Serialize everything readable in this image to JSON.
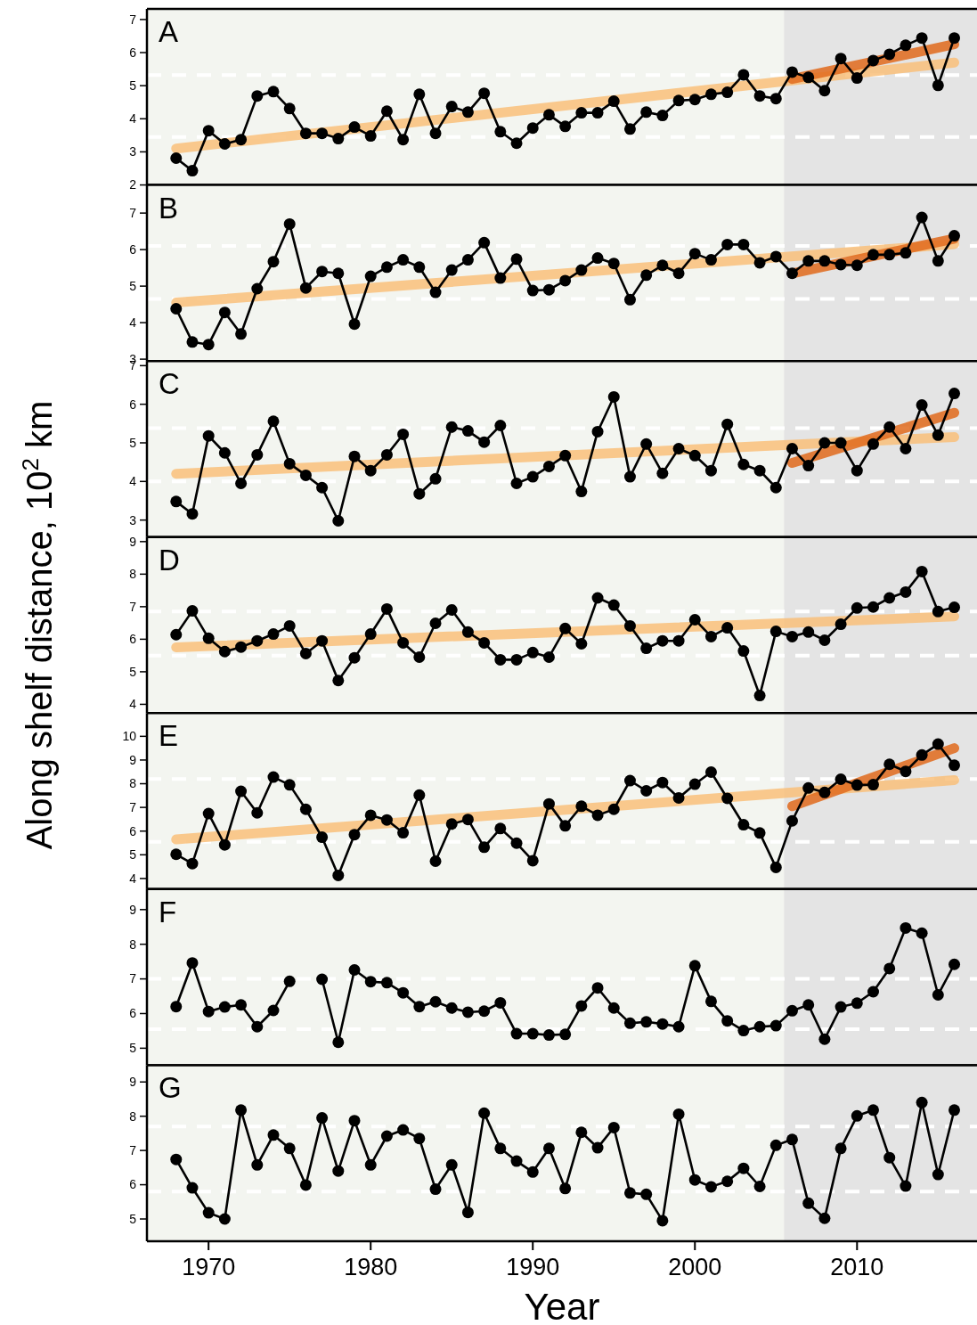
{
  "chart_data": [
    {
      "type": "line",
      "title": "A",
      "tick_labels": "y",
      "xlim": [
        1966.2,
        2017.4
      ],
      "xticks": [
        1970,
        1980,
        1990,
        2000,
        2010
      ],
      "ylim": [
        2,
        7.32
      ],
      "yticks": [
        2,
        3,
        4,
        5,
        6,
        7
      ],
      "x": [
        1968,
        1969,
        1970,
        1971,
        1972,
        1973,
        1974,
        1975,
        1976,
        1977,
        1978,
        1979,
        1980,
        1981,
        1982,
        1983,
        1984,
        1985,
        1986,
        1987,
        1988,
        1989,
        1990,
        1991,
        1992,
        1993,
        1994,
        1995,
        1996,
        1997,
        1998,
        1999,
        2000,
        2001,
        2002,
        2003,
        2004,
        2005,
        2006,
        2007,
        2008,
        2009,
        2010,
        2011,
        2012,
        2013,
        2014,
        2015,
        2016
      ],
      "bands": [
        {
          "axis": "x",
          "from": 2005.5,
          "to": 2017.4,
          "color": "#e4e4e4"
        }
      ],
      "ref_lines": [
        {
          "axis": "y",
          "value": 3.45,
          "color": "#ffffff",
          "line_style": "dashed"
        },
        {
          "axis": "y",
          "value": 5.32,
          "color": "#ffffff",
          "line_style": "dashed"
        }
      ],
      "series": [
        {
          "type": "line",
          "color": "#000000",
          "marker": "circle",
          "values": [
            2.81,
            2.43,
            3.64,
            3.24,
            3.37,
            4.69,
            4.82,
            4.31,
            3.56,
            3.56,
            3.4,
            3.75,
            3.48,
            4.23,
            3.37,
            4.74,
            3.56,
            4.37,
            4.2,
            4.77,
            3.61,
            3.26,
            3.72,
            4.12,
            3.77,
            4.18,
            4.18,
            4.53,
            3.69,
            4.2,
            4.1,
            4.55,
            4.58,
            4.74,
            4.8,
            5.33,
            4.69,
            4.61,
            5.41,
            5.25,
            4.85,
            5.82,
            5.23,
            5.76,
            5.95,
            6.22,
            6.44,
            5.01,
            6.44
          ]
        },
        {
          "type": "line",
          "color": "#f9c07a",
          "marker": "none",
          "x": [
            1968,
            2016
          ],
          "values": [
            3.1,
            5.7
          ]
        },
        {
          "type": "line",
          "color": "#e06a1c",
          "marker": "none",
          "x": [
            2006,
            2016
          ],
          "values": [
            5.2,
            6.25
          ]
        }
      ]
    },
    {
      "type": "line",
      "title": "B",
      "tick_labels": "y",
      "xlim": [
        1966.2,
        2017.4
      ],
      "xticks": [
        1970,
        1980,
        1990,
        2000,
        2010
      ],
      "ylim": [
        2.95,
        7.77
      ],
      "yticks": [
        3,
        4,
        5,
        6,
        7
      ],
      "x": [
        1968,
        1969,
        1970,
        1971,
        1972,
        1973,
        1974,
        1975,
        1976,
        1977,
        1978,
        1979,
        1980,
        1981,
        1982,
        1983,
        1984,
        1985,
        1986,
        1987,
        1988,
        1989,
        1990,
        1991,
        1992,
        1993,
        1994,
        1995,
        1996,
        1997,
        1998,
        1999,
        2000,
        2001,
        2002,
        2003,
        2004,
        2005,
        2006,
        2007,
        2008,
        2009,
        2010,
        2011,
        2012,
        2013,
        2014,
        2015,
        2016
      ],
      "bands": [
        {
          "axis": "x",
          "from": 2005.5,
          "to": 2017.4,
          "color": "#e4e4e4"
        }
      ],
      "ref_lines": [
        {
          "axis": "y",
          "value": 4.65,
          "color": "#ffffff",
          "line_style": "dashed"
        },
        {
          "axis": "y",
          "value": 6.1,
          "color": "#ffffff",
          "line_style": "dashed"
        }
      ],
      "series": [
        {
          "type": "line",
          "color": "#000000",
          "marker": "circle",
          "values": [
            4.38,
            3.47,
            3.4,
            4.28,
            3.69,
            4.93,
            5.67,
            6.7,
            4.95,
            5.4,
            5.35,
            3.96,
            5.27,
            5.52,
            5.72,
            5.52,
            4.83,
            5.44,
            5.72,
            6.19,
            5.22,
            5.74,
            4.88,
            4.9,
            5.15,
            5.44,
            5.77,
            5.62,
            4.63,
            5.3,
            5.57,
            5.35,
            5.89,
            5.72,
            6.14,
            6.14,
            5.64,
            5.81,
            5.35,
            5.69,
            5.69,
            5.59,
            5.57,
            5.86,
            5.86,
            5.91,
            6.88,
            5.69,
            6.38
          ]
        },
        {
          "type": "line",
          "color": "#f9c07a",
          "marker": "none",
          "x": [
            1968,
            2016
          ],
          "values": [
            4.55,
            6.15
          ]
        },
        {
          "type": "line",
          "color": "#e06a1c",
          "marker": "none",
          "x": [
            2006,
            2016
          ],
          "values": [
            5.35,
            6.3
          ]
        }
      ]
    },
    {
      "type": "line",
      "title": "C",
      "tick_labels": "y",
      "xlim": [
        1966.2,
        2017.4
      ],
      "xticks": [
        1970,
        1980,
        1990,
        2000,
        2010
      ],
      "ylim": [
        2.56,
        7.12
      ],
      "yticks": [
        3,
        4,
        5,
        6,
        7
      ],
      "x": [
        1968,
        1969,
        1970,
        1971,
        1972,
        1973,
        1974,
        1975,
        1976,
        1977,
        1978,
        1979,
        1980,
        1981,
        1982,
        1983,
        1984,
        1985,
        1986,
        1987,
        1988,
        1989,
        1990,
        1991,
        1992,
        1993,
        1994,
        1995,
        1996,
        1997,
        1998,
        1999,
        2000,
        2001,
        2002,
        2003,
        2004,
        2005,
        2006,
        2007,
        2008,
        2009,
        2010,
        2011,
        2012,
        2013,
        2014,
        2015,
        2016
      ],
      "bands": [
        {
          "axis": "x",
          "from": 2005.5,
          "to": 2017.4,
          "color": "#e4e4e4"
        }
      ],
      "ref_lines": [
        {
          "axis": "y",
          "value": 4.0,
          "color": "#ffffff",
          "line_style": "dashed"
        },
        {
          "axis": "y",
          "value": 5.38,
          "color": "#ffffff",
          "line_style": "dashed"
        }
      ],
      "series": [
        {
          "type": "line",
          "color": "#000000",
          "marker": "circle",
          "values": [
            3.48,
            3.16,
            5.18,
            4.74,
            3.95,
            4.69,
            5.56,
            4.46,
            4.16,
            3.84,
            2.98,
            4.65,
            4.28,
            4.69,
            5.22,
            3.68,
            4.07,
            5.41,
            5.31,
            5.02,
            5.45,
            3.95,
            4.12,
            4.39,
            4.67,
            3.74,
            5.29,
            6.19,
            4.12,
            4.97,
            4.21,
            4.85,
            4.67,
            4.28,
            5.48,
            4.44,
            4.28,
            3.84,
            4.85,
            4.41,
            5.0,
            5.0,
            4.28,
            4.97,
            5.41,
            4.85,
            5.98,
            5.2,
            6.28
          ]
        },
        {
          "type": "line",
          "color": "#f9c07a",
          "marker": "none",
          "x": [
            1968,
            2016
          ],
          "values": [
            4.2,
            5.15
          ]
        },
        {
          "type": "line",
          "color": "#e06a1c",
          "marker": "none",
          "x": [
            2006,
            2016
          ],
          "values": [
            4.48,
            5.78
          ]
        }
      ]
    },
    {
      "type": "line",
      "title": "D",
      "ylabel": "Along shelf distance, 10$^{2}$ km",
      "tick_labels": "y",
      "xlim": [
        1966.2,
        2017.4
      ],
      "xticks": [
        1970,
        1980,
        1990,
        2000,
        2010
      ],
      "ylim": [
        3.73,
        9.14
      ],
      "yticks": [
        4,
        5,
        6,
        7,
        8,
        9
      ],
      "x": [
        1968,
        1969,
        1970,
        1971,
        1972,
        1973,
        1974,
        1975,
        1976,
        1977,
        1978,
        1979,
        1980,
        1981,
        1982,
        1983,
        1984,
        1985,
        1986,
        1987,
        1988,
        1989,
        1990,
        1991,
        1992,
        1993,
        1994,
        1995,
        1996,
        1997,
        1998,
        1999,
        2000,
        2001,
        2002,
        2003,
        2004,
        2005,
        2006,
        2007,
        2008,
        2009,
        2010,
        2011,
        2012,
        2013,
        2014,
        2015,
        2016
      ],
      "bands": [
        {
          "axis": "x",
          "from": 2005.5,
          "to": 2017.4,
          "color": "#e4e4e4"
        }
      ],
      "ref_lines": [
        {
          "axis": "y",
          "value": 5.5,
          "color": "#ffffff",
          "line_style": "dashed"
        },
        {
          "axis": "y",
          "value": 6.85,
          "color": "#ffffff",
          "line_style": "dashed"
        }
      ],
      "series": [
        {
          "type": "line",
          "color": "#000000",
          "marker": "circle",
          "values": [
            6.14,
            6.87,
            6.03,
            5.62,
            5.76,
            5.95,
            6.16,
            6.41,
            5.56,
            5.95,
            4.73,
            5.43,
            6.16,
            6.93,
            5.89,
            5.45,
            6.49,
            6.9,
            6.22,
            5.89,
            5.37,
            5.37,
            5.59,
            5.45,
            6.33,
            5.86,
            7.27,
            7.05,
            6.41,
            5.72,
            5.95,
            5.95,
            6.6,
            6.08,
            6.35,
            5.64,
            4.27,
            6.24,
            6.08,
            6.22,
            5.97,
            6.46,
            6.96,
            6.99,
            7.27,
            7.45,
            8.08,
            6.85,
            6.98
          ]
        },
        {
          "type": "line",
          "color": "#f9c07a",
          "marker": "none",
          "x": [
            1968,
            2016
          ],
          "values": [
            5.75,
            6.7
          ]
        }
      ]
    },
    {
      "type": "line",
      "title": "E",
      "tick_labels": "y",
      "xlim": [
        1966.2,
        2017.4
      ],
      "xticks": [
        1970,
        1980,
        1990,
        2000,
        2010
      ],
      "ylim": [
        3.55,
        10.98
      ],
      "yticks": [
        4,
        5,
        6,
        7,
        8,
        9,
        10
      ],
      "x": [
        1968,
        1969,
        1970,
        1971,
        1972,
        1973,
        1974,
        1975,
        1976,
        1977,
        1978,
        1979,
        1980,
        1981,
        1982,
        1983,
        1984,
        1985,
        1986,
        1987,
        1988,
        1989,
        1990,
        1991,
        1992,
        1993,
        1994,
        1995,
        1996,
        1997,
        1998,
        1999,
        2000,
        2001,
        2002,
        2003,
        2004,
        2005,
        2006,
        2007,
        2008,
        2009,
        2010,
        2011,
        2012,
        2013,
        2014,
        2015,
        2016
      ],
      "bands": [
        {
          "axis": "x",
          "from": 2005.5,
          "to": 2017.4,
          "color": "#e4e4e4"
        }
      ],
      "ref_lines": [
        {
          "axis": "y",
          "value": 5.55,
          "color": "#ffffff",
          "line_style": "dashed"
        },
        {
          "axis": "y",
          "value": 8.2,
          "color": "#ffffff",
          "line_style": "dashed"
        }
      ],
      "series": [
        {
          "type": "line",
          "color": "#000000",
          "marker": "circle",
          "values": [
            5.02,
            4.63,
            6.74,
            5.42,
            7.68,
            6.77,
            8.28,
            7.95,
            6.92,
            5.74,
            4.13,
            5.85,
            6.67,
            6.47,
            5.93,
            7.52,
            4.73,
            6.3,
            6.49,
            5.32,
            6.11,
            5.49,
            4.75,
            7.15,
            6.22,
            7.05,
            6.67,
            6.92,
            8.13,
            7.7,
            8.05,
            7.4,
            7.98,
            8.49,
            7.38,
            6.27,
            5.92,
            4.47,
            6.43,
            7.82,
            7.63,
            8.19,
            7.94,
            7.96,
            8.82,
            8.52,
            9.21,
            9.67,
            8.78
          ]
        },
        {
          "type": "line",
          "color": "#f9c07a",
          "marker": "none",
          "x": [
            1968,
            2016
          ],
          "values": [
            5.65,
            8.15
          ]
        },
        {
          "type": "line",
          "color": "#e06a1c",
          "marker": "none",
          "x": [
            2006,
            2016
          ],
          "values": [
            7.05,
            9.5
          ]
        }
      ]
    },
    {
      "type": "line",
      "title": "F",
      "tick_labels": "y",
      "xlim": [
        1966.2,
        2017.4
      ],
      "xticks": [
        1970,
        1980,
        1990,
        2000,
        2010
      ],
      "ylim": [
        4.51,
        9.59
      ],
      "yticks": [
        5,
        6,
        7,
        8,
        9
      ],
      "x": [
        1968,
        1969,
        1970,
        1971,
        1972,
        1973,
        1974,
        1975,
        1976,
        1977,
        1978,
        1979,
        1980,
        1981,
        1982,
        1983,
        1984,
        1985,
        1986,
        1987,
        1988,
        1989,
        1990,
        1991,
        1992,
        1993,
        1994,
        1995,
        1996,
        1997,
        1998,
        1999,
        2000,
        2001,
        2002,
        2003,
        2004,
        2005,
        2006,
        2007,
        2008,
        2009,
        2010,
        2011,
        2012,
        2013,
        2014,
        2015,
        2016
      ],
      "bands": [
        {
          "axis": "x",
          "from": 2005.5,
          "to": 2017.4,
          "color": "#e4e4e4"
        }
      ],
      "ref_lines": [
        {
          "axis": "y",
          "value": 5.55,
          "color": "#ffffff",
          "line_style": "dashed"
        },
        {
          "axis": "y",
          "value": 7.0,
          "color": "#ffffff",
          "line_style": "dashed"
        }
      ],
      "series": [
        {
          "type": "line",
          "color": "#000000",
          "marker": "circle",
          "values": [
            6.2,
            7.46,
            6.06,
            6.19,
            6.25,
            5.62,
            6.09,
            6.93,
            null,
            6.99,
            5.17,
            7.26,
            6.92,
            6.89,
            6.6,
            6.2,
            6.34,
            6.16,
            6.04,
            6.07,
            6.31,
            5.42,
            5.42,
            5.38,
            5.4,
            6.22,
            6.74,
            6.16,
            5.72,
            5.76,
            5.7,
            5.62,
            7.38,
            6.35,
            5.79,
            5.51,
            5.62,
            5.65,
            6.08,
            6.25,
            5.26,
            6.19,
            6.3,
            6.63,
            7.3,
            8.47,
            8.32,
            6.54,
            7.42
          ]
        }
      ]
    },
    {
      "type": "line",
      "title": "G",
      "xlabel": "Year",
      "xlim": [
        1966.2,
        2017.4
      ],
      "xticks": [
        1970,
        1980,
        1990,
        2000,
        2010
      ],
      "ylim": [
        4.35,
        9.49
      ],
      "yticks": [
        5,
        6,
        7,
        8,
        9
      ],
      "x": [
        1968,
        1969,
        1970,
        1971,
        1972,
        1973,
        1974,
        1975,
        1976,
        1977,
        1978,
        1979,
        1980,
        1981,
        1982,
        1983,
        1984,
        1985,
        1986,
        1987,
        1988,
        1989,
        1990,
        1991,
        1992,
        1993,
        1994,
        1995,
        1996,
        1997,
        1998,
        1999,
        2000,
        2001,
        2002,
        2003,
        2004,
        2005,
        2006,
        2007,
        2008,
        2009,
        2010,
        2011,
        2012,
        2013,
        2014,
        2015,
        2016
      ],
      "bands": [
        {
          "axis": "x",
          "from": 2005.5,
          "to": 2017.4,
          "color": "#e4e4e4"
        }
      ],
      "ref_lines": [
        {
          "axis": "y",
          "value": 5.8,
          "color": "#ffffff",
          "line_style": "dashed"
        },
        {
          "axis": "y",
          "value": 7.7,
          "color": "#ffffff",
          "line_style": "dashed"
        }
      ],
      "series": [
        {
          "type": "line",
          "color": "#000000",
          "marker": "circle",
          "values": [
            6.74,
            5.91,
            5.18,
            5.0,
            8.18,
            6.58,
            7.45,
            7.06,
            5.99,
            7.95,
            6.4,
            7.87,
            6.58,
            7.42,
            7.6,
            7.35,
            5.87,
            6.58,
            5.19,
            8.09,
            7.06,
            6.69,
            6.37,
            7.06,
            5.89,
            7.53,
            7.08,
            7.67,
            5.76,
            5.72,
            4.95,
            8.06,
            6.14,
            5.94,
            6.1,
            6.48,
            5.95,
            7.15,
            7.32,
            5.46,
            5.02,
            7.06,
            8.01,
            8.18,
            6.79,
            5.96,
            8.4,
            6.3,
            8.18
          ]
        }
      ]
    }
  ]
}
